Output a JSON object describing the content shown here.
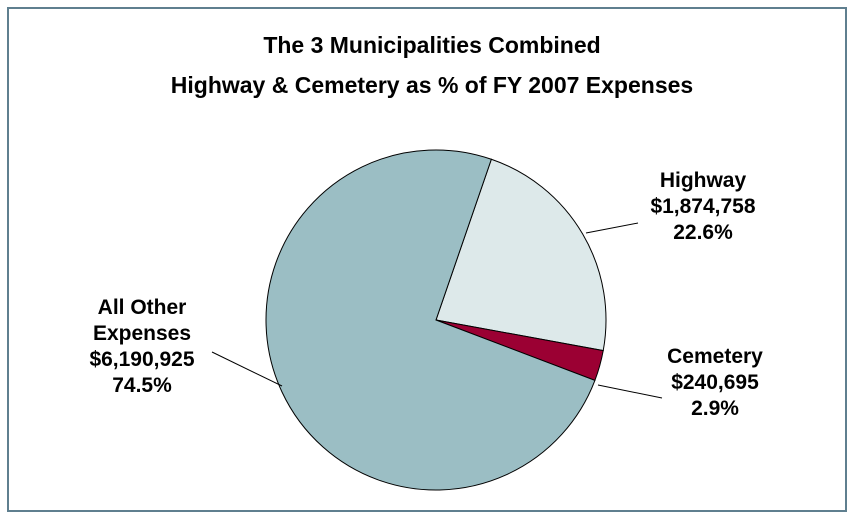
{
  "chart_data": {
    "type": "pie",
    "title": "The 3 Municipalities Combined",
    "subtitle": "Highway & Cemetery as % of FY 2007 Expenses",
    "categories": [
      "Highway",
      "Cemetery",
      "All Other Expenses"
    ],
    "values": [
      22.6,
      2.9,
      74.5
    ],
    "value_labels": [
      "22.6%",
      "2.9%",
      "74.5%"
    ],
    "amounts": [
      1874758,
      240695,
      6190925
    ],
    "amount_labels": [
      "$1,874,758",
      "$240,695",
      "$6,190,925"
    ],
    "colors": [
      "#dde9ea",
      "#9b0033",
      "#9bbec4"
    ]
  }
}
